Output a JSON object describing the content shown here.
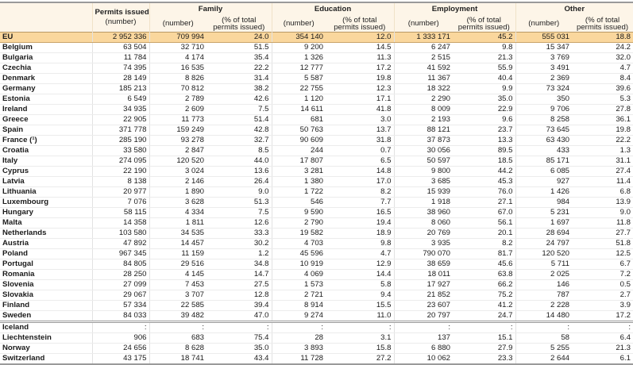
{
  "header": {
    "permits": "Permits issued",
    "permits_unit": "(number)",
    "groups": [
      "Family",
      "Education",
      "Employment",
      "Other"
    ],
    "number": "(number)",
    "percent_line1": "(% of total",
    "percent_line2": "permits issued)"
  },
  "eu_row": [
    "EU",
    "2 952 336",
    "709 994",
    "24.0",
    "354 140",
    "12.0",
    "1 333 171",
    "45.2",
    "555 031",
    "18.8"
  ],
  "rows": [
    [
      "Belgium",
      "63 504",
      "32 710",
      "51.5",
      "9 200",
      "14.5",
      "6 247",
      "9.8",
      "15 347",
      "24.2"
    ],
    [
      "Bulgaria",
      "11 784",
      "4 174",
      "35.4",
      "1 326",
      "11.3",
      "2 515",
      "21.3",
      "3 769",
      "32.0"
    ],
    [
      "Czechia",
      "74 395",
      "16 535",
      "22.2",
      "12 777",
      "17.2",
      "41 592",
      "55.9",
      "3 491",
      "4.7"
    ],
    [
      "Denmark",
      "28 149",
      "8 826",
      "31.4",
      "5 587",
      "19.8",
      "11 367",
      "40.4",
      "2 369",
      "8.4"
    ],
    [
      "Germany",
      "185 213",
      "70 812",
      "38.2",
      "22 755",
      "12.3",
      "18 322",
      "9.9",
      "73 324",
      "39.6"
    ],
    [
      "Estonia",
      "6 549",
      "2 789",
      "42.6",
      "1 120",
      "17.1",
      "2 290",
      "35.0",
      "350",
      "5.3"
    ],
    [
      "Ireland",
      "34 935",
      "2 609",
      "7.5",
      "14 611",
      "41.8",
      "8 009",
      "22.9",
      "9 706",
      "27.8"
    ],
    [
      "Greece",
      "22 905",
      "11 773",
      "51.4",
      "681",
      "3.0",
      "2 193",
      "9.6",
      "8 258",
      "36.1"
    ],
    [
      "Spain",
      "371 778",
      "159 249",
      "42.8",
      "50 763",
      "13.7",
      "88 121",
      "23.7",
      "73 645",
      "19.8"
    ],
    [
      "France (¹)",
      "285 190",
      "93 278",
      "32.7",
      "90 609",
      "31.8",
      "37 873",
      "13.3",
      "63 430",
      "22.2"
    ],
    [
      "Croatia",
      "33 580",
      "2 847",
      "8.5",
      "244",
      "0.7",
      "30 056",
      "89.5",
      "433",
      "1.3"
    ],
    [
      "Italy",
      "274 095",
      "120 520",
      "44.0",
      "17 807",
      "6.5",
      "50 597",
      "18.5",
      "85 171",
      "31.1"
    ],
    [
      "Cyprus",
      "22 190",
      "3 024",
      "13.6",
      "3 281",
      "14.8",
      "9 800",
      "44.2",
      "6 085",
      "27.4"
    ],
    [
      "Latvia",
      "8 138",
      "2 146",
      "26.4",
      "1 380",
      "17.0",
      "3 685",
      "45.3",
      "927",
      "11.4"
    ],
    [
      "Lithuania",
      "20 977",
      "1 890",
      "9.0",
      "1 722",
      "8.2",
      "15 939",
      "76.0",
      "1 426",
      "6.8"
    ],
    [
      "Luxembourg",
      "7 076",
      "3 628",
      "51.3",
      "546",
      "7.7",
      "1 918",
      "27.1",
      "984",
      "13.9"
    ],
    [
      "Hungary",
      "58 115",
      "4 334",
      "7.5",
      "9 590",
      "16.5",
      "38 960",
      "67.0",
      "5 231",
      "9.0"
    ],
    [
      "Malta",
      "14 358",
      "1 811",
      "12.6",
      "2 790",
      "19.4",
      "8 060",
      "56.1",
      "1 697",
      "11.8"
    ],
    [
      "Netherlands",
      "103 580",
      "34 535",
      "33.3",
      "19 582",
      "18.9",
      "20 769",
      "20.1",
      "28 694",
      "27.7"
    ],
    [
      "Austria",
      "47 892",
      "14 457",
      "30.2",
      "4 703",
      "9.8",
      "3 935",
      "8.2",
      "24 797",
      "51.8"
    ],
    [
      "Poland",
      "967 345",
      "11 159",
      "1.2",
      "45 596",
      "4.7",
      "790 070",
      "81.7",
      "120 520",
      "12.5"
    ],
    [
      "Portugal",
      "84 805",
      "29 516",
      "34.8",
      "10 919",
      "12.9",
      "38 659",
      "45.6",
      "5 711",
      "6.7"
    ],
    [
      "Romania",
      "28 250",
      "4 145",
      "14.7",
      "4 069",
      "14.4",
      "18 011",
      "63.8",
      "2 025",
      "7.2"
    ],
    [
      "Slovenia",
      "27 099",
      "7 453",
      "27.5",
      "1 573",
      "5.8",
      "17 927",
      "66.2",
      "146",
      "0.5"
    ],
    [
      "Slovakia",
      "29 067",
      "3 707",
      "12.8",
      "2 721",
      "9.4",
      "21 852",
      "75.2",
      "787",
      "2.7"
    ],
    [
      "Finland",
      "57 334",
      "22 585",
      "39.4",
      "8 914",
      "15.5",
      "23 607",
      "41.2",
      "2 228",
      "3.9"
    ],
    [
      "Sweden",
      "84 033",
      "39 482",
      "47.0",
      "9 274",
      "11.0",
      "20 797",
      "24.7",
      "14 480",
      "17.2"
    ],
    [
      "Iceland",
      ":",
      ":",
      ":",
      ":",
      ":",
      ":",
      ":",
      ":",
      ":"
    ],
    [
      "Liechtenstein",
      "906",
      "683",
      "75.4",
      "28",
      "3.1",
      "137",
      "15.1",
      "58",
      "6.4"
    ],
    [
      "Norway",
      "24 656",
      "8 628",
      "35.0",
      "3 893",
      "15.8",
      "6 880",
      "27.9",
      "5 255",
      "21.3"
    ],
    [
      "Switzerland",
      "43 175",
      "18 741",
      "43.4",
      "11 728",
      "27.2",
      "10 062",
      "23.3",
      "2 644",
      "6.1"
    ]
  ],
  "colors": {
    "eu_row_bg": "#fad79d",
    "header_bg": "#fdf5e8"
  }
}
